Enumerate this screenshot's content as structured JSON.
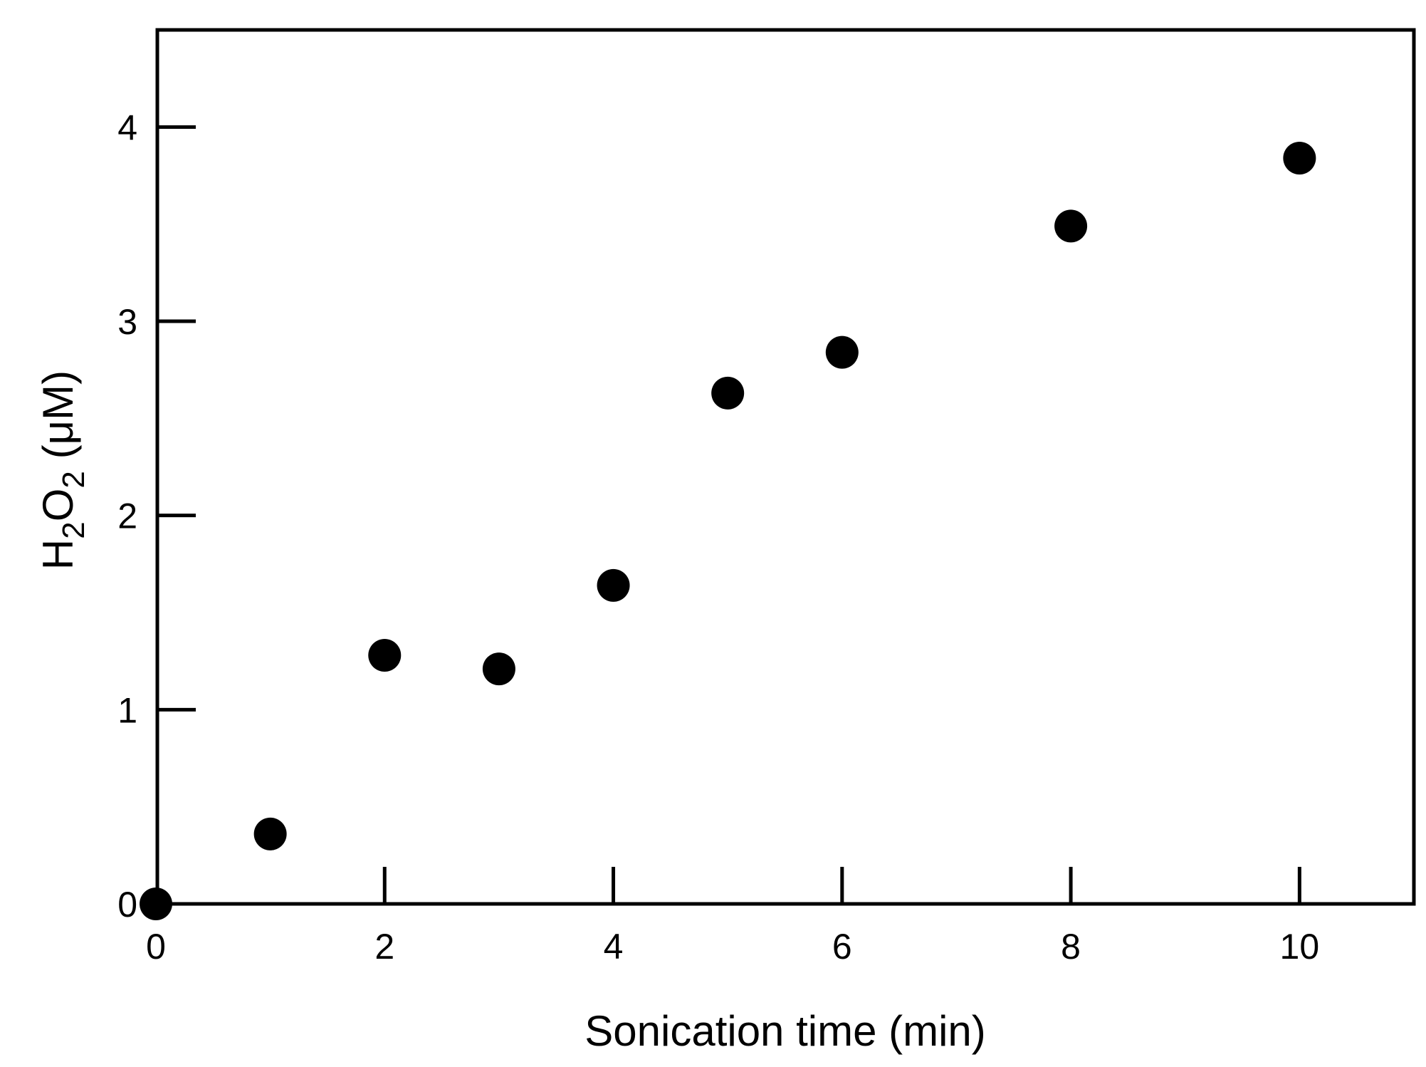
{
  "chart_data": {
    "type": "scatter",
    "xlabel": "Sonication time (min)",
    "ylabel_main": "H",
    "ylabel_sub1": "2",
    "ylabel_mid": "O",
    "ylabel_sub2": "2",
    "ylabel_unit": " (μM)",
    "xlim": [
      0,
      11
    ],
    "ylim": [
      0,
      4.5
    ],
    "x_ticks": [
      0,
      2,
      4,
      6,
      8,
      10
    ],
    "x_tick_labels": [
      "0",
      "2",
      "4",
      "6",
      "8",
      "10"
    ],
    "y_ticks": [
      0,
      1,
      2,
      3,
      4
    ],
    "y_tick_labels": [
      "0",
      "1",
      "2",
      "3",
      "4"
    ],
    "grid": false,
    "marker_color": "#000000",
    "series": [
      {
        "x": [
          0,
          1,
          2,
          3,
          4,
          5,
          6,
          8,
          10
        ],
        "y": [
          0.0,
          0.36,
          1.28,
          1.21,
          1.64,
          2.63,
          2.84,
          3.49,
          3.84
        ]
      }
    ]
  }
}
